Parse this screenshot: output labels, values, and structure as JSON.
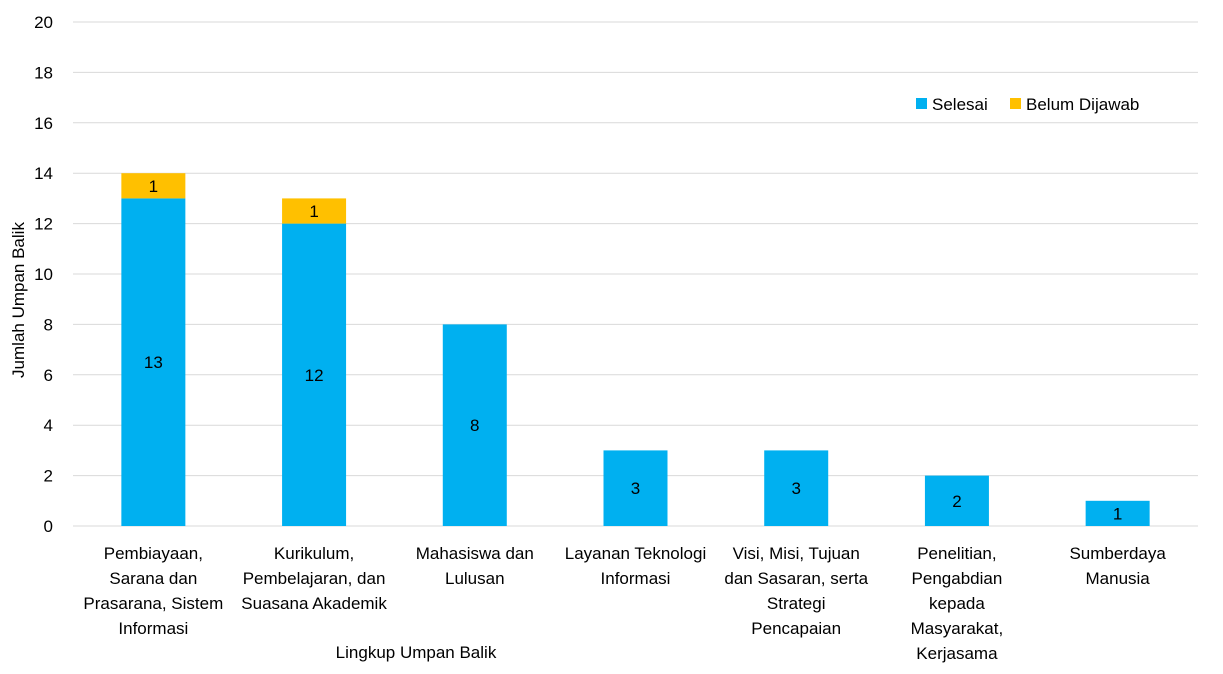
{
  "chart_data": {
    "type": "bar",
    "stacked": true,
    "title": "",
    "xlabel": "Lingkup Umpan Balik",
    "ylabel": "Jumlah Umpan Balik",
    "ylim": [
      0,
      20
    ],
    "ytick_step": 2,
    "grid": true,
    "legend_position": "top-right",
    "categories": [
      "Pembiayaan, Sarana dan Prasarana, Sistem Informasi",
      "Kurikulum, Pembelajaran, dan Suasana Akademik",
      "Mahasiswa dan Lulusan",
      "Layanan Teknologi Informasi",
      "Visi, Misi, Tujuan dan Sasaran, serta Strategi Pencapaian",
      "Penelitian, Pengabdian kepada Masyarakat, Kerjasama",
      "Sumberdaya Manusia"
    ],
    "category_lines": [
      [
        "Pembiayaan,",
        "Sarana dan",
        "Prasarana, Sistem",
        "Informasi"
      ],
      [
        "Kurikulum,",
        "Pembelajaran, dan",
        "Suasana Akademik"
      ],
      [
        "Mahasiswa dan",
        "Lulusan"
      ],
      [
        "Layanan Teknologi",
        "Informasi"
      ],
      [
        "Visi, Misi, Tujuan",
        "dan Sasaran, serta",
        "Strategi",
        "Pencapaian"
      ],
      [
        "Penelitian,",
        "Pengabdian",
        "kepada",
        "Masyarakat,",
        "Kerjasama"
      ],
      [
        "Sumberdaya",
        "Manusia"
      ]
    ],
    "series": [
      {
        "name": "Selesai",
        "color": "#00B0F0",
        "values": [
          13,
          12,
          8,
          3,
          3,
          2,
          1
        ]
      },
      {
        "name": "Belum Dijawab",
        "color": "#FFC000",
        "values": [
          1,
          1,
          0,
          0,
          0,
          0,
          0
        ]
      }
    ]
  }
}
